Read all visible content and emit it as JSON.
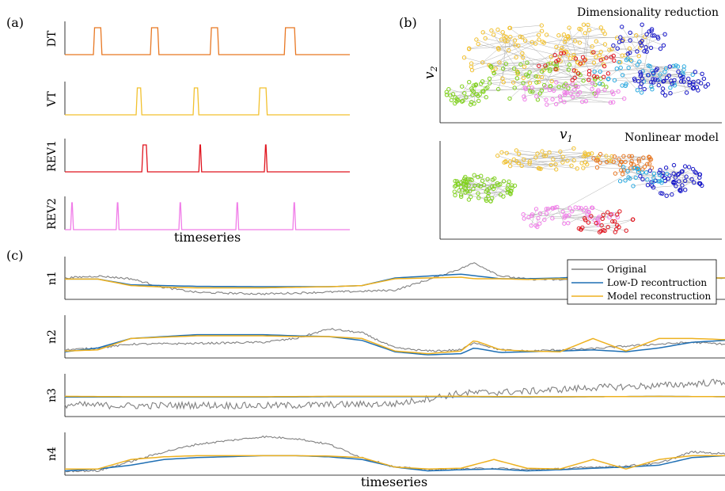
{
  "panel_labels": {
    "a": "(a)",
    "b": "(b)",
    "c": "(c)"
  },
  "panel_a": {
    "xlabel": "timeseries",
    "rows": [
      {
        "label": "DT",
        "color": "#E87722",
        "pulses": [
          [
            0.1,
            0.13
          ],
          [
            0.3,
            0.33
          ],
          [
            0.51,
            0.54
          ],
          [
            0.77,
            0.81
          ]
        ]
      },
      {
        "label": "VT",
        "color": "#F2C12E",
        "pulses": [
          [
            0.25,
            0.27
          ],
          [
            0.45,
            0.47
          ],
          [
            0.68,
            0.71
          ]
        ]
      },
      {
        "label": "REV1",
        "color": "#E0141E",
        "pulses": [
          [
            0.27,
            0.29
          ],
          [
            0.47,
            0.48
          ],
          [
            0.7,
            0.71
          ]
        ]
      },
      {
        "label": "REV2",
        "color": "#F07CE8",
        "pulses": [
          [
            0.02,
            0.03
          ],
          [
            0.18,
            0.19
          ],
          [
            0.4,
            0.41
          ],
          [
            0.6,
            0.61
          ],
          [
            0.8,
            0.81
          ]
        ]
      }
    ]
  },
  "panel_b": {
    "top_title": "Dimensionality reduction",
    "bottom_title": "Nonlinear model",
    "xlabel": "v",
    "xlabel_sub": "1",
    "ylabel": "v",
    "ylabel_sub": "2",
    "cluster_colors": [
      "#F2C12E",
      "#7FD11B",
      "#E0141E",
      "#F07CE8",
      "#29A9E0",
      "#1414C8",
      "#E87722"
    ]
  },
  "chart_data": {
    "type": "line",
    "xlabel": "timeseries",
    "legend": {
      "placement": "top-right",
      "entries": [
        {
          "name": "Original",
          "color": "#808080"
        },
        {
          "name": "Low-D recontruction",
          "color": "#1F6FB4"
        },
        {
          "name": "Model reconstruction",
          "color": "#EDB120"
        }
      ]
    },
    "grid": false,
    "panels": [
      {
        "label": "n1",
        "x": [
          0,
          0.05,
          0.1,
          0.15,
          0.2,
          0.3,
          0.4,
          0.45,
          0.5,
          0.55,
          0.6,
          0.62,
          0.66,
          0.7,
          0.75,
          0.8,
          0.85,
          0.9,
          0.95,
          1.0
        ],
        "Original": [
          0.5,
          0.55,
          0.48,
          0.25,
          0.12,
          0.08,
          0.13,
          0.15,
          0.18,
          0.45,
          0.75,
          0.9,
          0.55,
          0.47,
          0.45,
          0.5,
          0.55,
          0.5,
          0.5,
          0.5
        ],
        "LowD": [
          0.47,
          0.47,
          0.32,
          0.3,
          0.28,
          0.27,
          0.27,
          0.3,
          0.5,
          0.55,
          0.6,
          0.56,
          0.48,
          0.48,
          0.5,
          0.55,
          0.55,
          0.52,
          0.5,
          0.5
        ],
        "Model": [
          0.47,
          0.47,
          0.3,
          0.26,
          0.24,
          0.24,
          0.27,
          0.3,
          0.48,
          0.5,
          0.52,
          0.48,
          0.48,
          0.46,
          0.48,
          0.46,
          0.5,
          0.48,
          0.5,
          0.5
        ]
      },
      {
        "label": "n2",
        "x": [
          0,
          0.05,
          0.1,
          0.2,
          0.3,
          0.35,
          0.4,
          0.45,
          0.5,
          0.55,
          0.6,
          0.62,
          0.66,
          0.7,
          0.75,
          0.8,
          0.85,
          0.9,
          0.95,
          1.0
        ],
        "Original": [
          0.15,
          0.2,
          0.3,
          0.32,
          0.35,
          0.45,
          0.7,
          0.6,
          0.2,
          0.12,
          0.15,
          0.35,
          0.15,
          0.12,
          0.15,
          0.18,
          0.25,
          0.3,
          0.35,
          0.3
        ],
        "LowD": [
          0.1,
          0.2,
          0.45,
          0.55,
          0.55,
          0.52,
          0.5,
          0.4,
          0.1,
          0.02,
          0.05,
          0.2,
          0.08,
          0.1,
          0.12,
          0.15,
          0.1,
          0.2,
          0.35,
          0.4
        ],
        "Model": [
          0.12,
          0.15,
          0.45,
          0.52,
          0.52,
          0.5,
          0.5,
          0.45,
          0.12,
          0.05,
          0.12,
          0.4,
          0.15,
          0.12,
          0.1,
          0.45,
          0.12,
          0.45,
          0.45,
          0.42
        ]
      },
      {
        "label": "n3",
        "x": [
          0,
          0.1,
          0.2,
          0.3,
          0.4,
          0.5,
          0.6,
          0.7,
          0.8,
          0.9,
          1.0
        ],
        "Original": [
          0.25,
          0.22,
          0.24,
          0.22,
          0.25,
          0.27,
          0.55,
          0.6,
          0.7,
          0.75,
          0.85
        ],
        "LowD": [
          0.45,
          0.45,
          0.45,
          0.45,
          0.46,
          0.46,
          0.46,
          0.45,
          0.46,
          0.47,
          0.46
        ],
        "Model": [
          0.47,
          0.46,
          0.46,
          0.46,
          0.47,
          0.47,
          0.47,
          0.46,
          0.46,
          0.47,
          0.46
        ]
      },
      {
        "label": "n4",
        "x": [
          0,
          0.05,
          0.1,
          0.15,
          0.2,
          0.3,
          0.35,
          0.4,
          0.45,
          0.5,
          0.55,
          0.6,
          0.65,
          0.7,
          0.75,
          0.8,
          0.85,
          0.9,
          0.95,
          1.0
        ],
        "Original": [
          0.05,
          0.05,
          0.3,
          0.55,
          0.75,
          0.95,
          0.9,
          0.75,
          0.4,
          0.15,
          0.08,
          0.1,
          0.12,
          0.08,
          0.1,
          0.15,
          0.18,
          0.25,
          0.55,
          0.5
        ],
        "LowD": [
          0.05,
          0.1,
          0.2,
          0.35,
          0.4,
          0.45,
          0.45,
          0.42,
          0.35,
          0.15,
          0.05,
          0.08,
          0.1,
          0.05,
          0.08,
          0.12,
          0.15,
          0.2,
          0.4,
          0.45
        ],
        "Model": [
          0.1,
          0.1,
          0.35,
          0.42,
          0.45,
          0.45,
          0.45,
          0.44,
          0.4,
          0.15,
          0.1,
          0.12,
          0.35,
          0.12,
          0.1,
          0.35,
          0.1,
          0.35,
          0.45,
          0.45
        ]
      }
    ]
  }
}
